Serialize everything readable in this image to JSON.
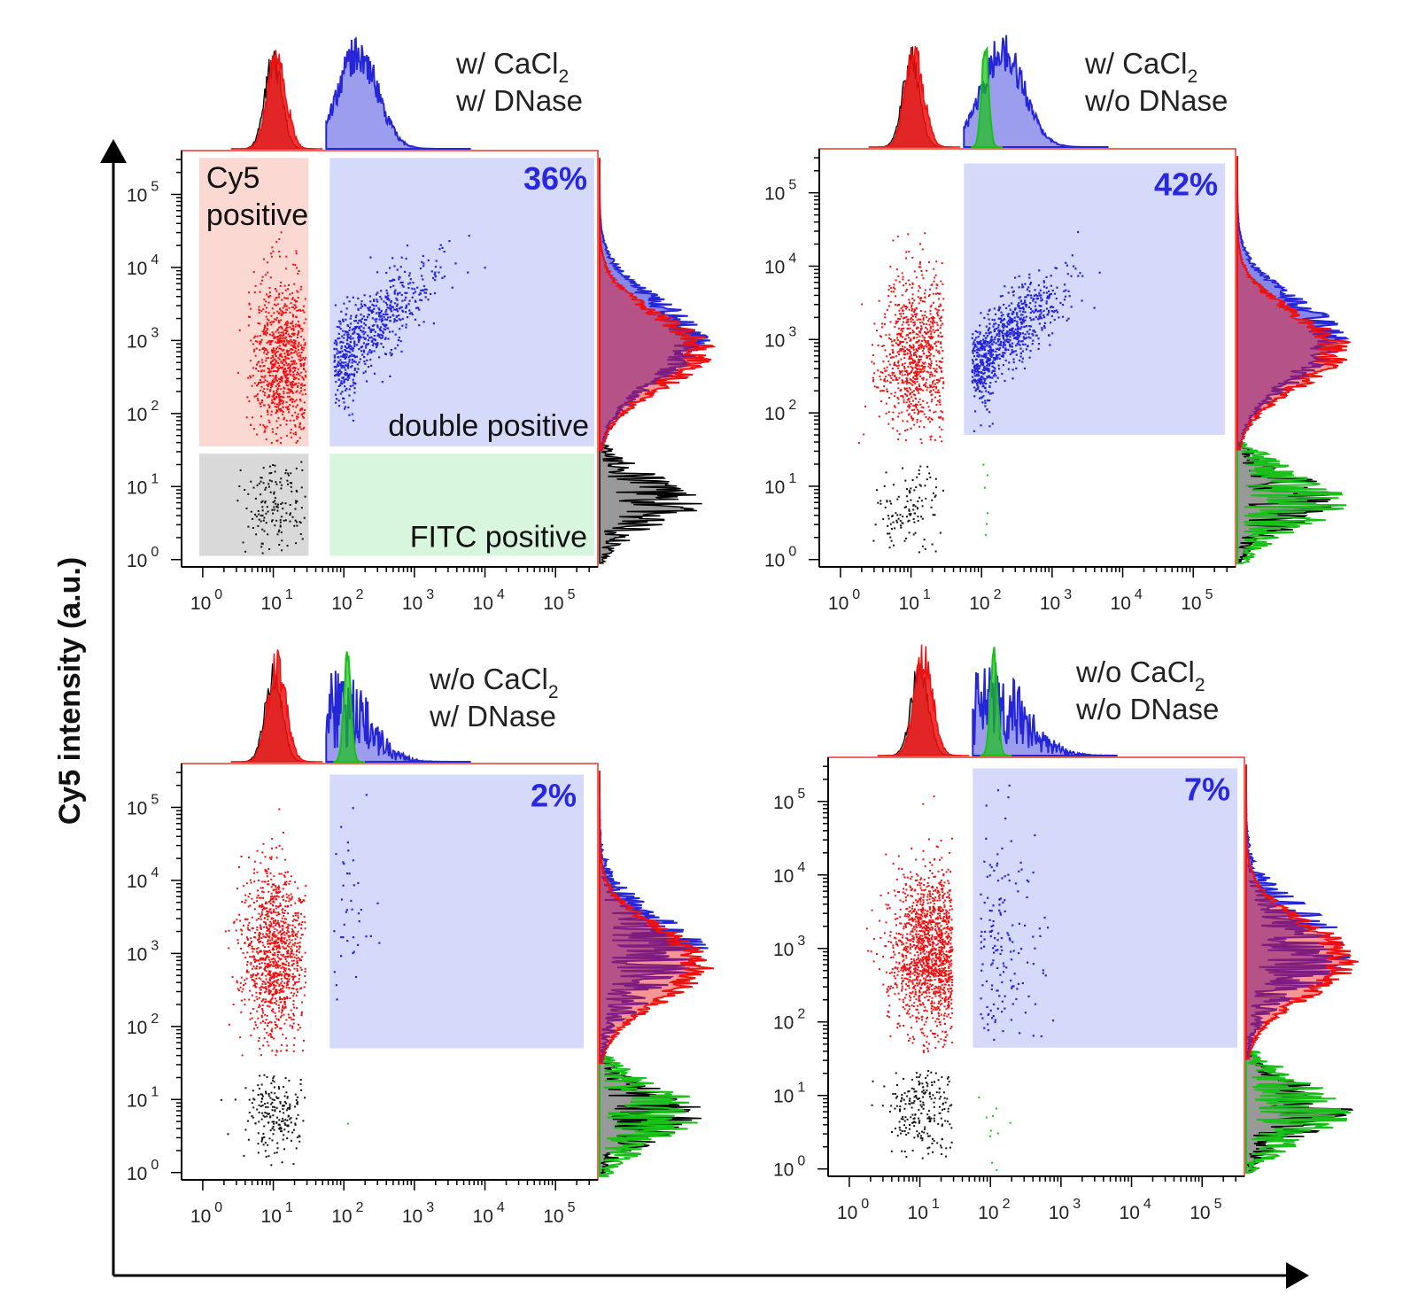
{
  "figure": {
    "y_axis_title": "Cy5 intensity (a.u.)",
    "colors": {
      "double_positive": "#2626d9",
      "cy5_positive": "#ee1111",
      "fitc_positive": "#18c018",
      "negative": "#111111",
      "gate_blue": "#d6dafa",
      "gate_red": "#fbd8d2",
      "gate_green": "#d8f5de",
      "gate_gray": "#d9d9d9"
    },
    "gate_labels": {
      "cy5_line1": "Cy5",
      "cy5_line2": "positive",
      "double": "double positive",
      "fitc": "FITC positive"
    }
  },
  "chart_data": [
    {
      "type": "scatter",
      "title_line1": "w/ CaCl",
      "title_sub": "2",
      "title_line2": "w/ DNase",
      "percent_label": "36%",
      "xaxis": {
        "scale": "log",
        "range_exp": [
          -0.3,
          5.6
        ],
        "ticks": [
          {
            "base": "10",
            "exp": "0"
          },
          {
            "base": "10",
            "exp": "1"
          },
          {
            "base": "10",
            "exp": "2"
          },
          {
            "base": "10",
            "exp": "3"
          },
          {
            "base": "10",
            "exp": "4"
          },
          {
            "base": "10",
            "exp": "5"
          }
        ]
      },
      "yaxis": {
        "scale": "log",
        "range_exp": [
          -0.1,
          5.6
        ],
        "ticks": [
          {
            "base": "10",
            "exp": "0"
          },
          {
            "base": "10",
            "exp": "1"
          },
          {
            "base": "10",
            "exp": "2"
          },
          {
            "base": "10",
            "exp": "3"
          },
          {
            "base": "10",
            "exp": "4"
          },
          {
            "base": "10",
            "exp": "5"
          }
        ]
      },
      "gate_labels_shown": true,
      "populations": {
        "double_positive_pct": 36
      },
      "clusters": [
        {
          "name": "Cy5 positive",
          "color": "#ee1111",
          "n": 900,
          "x_mean": 1.1,
          "x_sd": 0.22,
          "y_mean": 2.75,
          "y_sd": 0.55
        },
        {
          "name": "double positive",
          "color": "#2626d9",
          "n": 650,
          "x_mean": 2.35,
          "x_sd": 0.5,
          "y_mean": 3.15,
          "y_sd": 0.5,
          "slope": 0.55
        },
        {
          "name": "negative",
          "color": "#111111",
          "n": 150,
          "x_mean": 1.0,
          "x_sd": 0.22,
          "y_mean": 0.75,
          "y_sd": 0.35
        },
        {
          "name": "FITC positive",
          "color": "#18c018",
          "n": 0,
          "x_mean": 2.1,
          "x_sd": 0.1,
          "y_mean": 0.8,
          "y_sd": 0.3
        }
      ],
      "gates": {
        "double": {
          "x": [
            1.8,
            5.55
          ],
          "y": [
            1.55,
            5.5
          ]
        },
        "cy5": {
          "x": [
            -0.05,
            1.5
          ],
          "y": [
            1.55,
            5.5
          ]
        },
        "fitc": {
          "x": [
            1.8,
            5.55
          ],
          "y": [
            0.05,
            1.45
          ]
        },
        "neg": {
          "x": [
            -0.05,
            1.5
          ],
          "y": [
            0.05,
            1.45
          ]
        }
      }
    },
    {
      "type": "scatter",
      "title_line1": "w/ CaCl",
      "title_sub": "2",
      "title_line2": "w/o DNase",
      "percent_label": "42%",
      "xaxis": {
        "scale": "log",
        "range_exp": [
          -0.3,
          5.6
        ],
        "ticks": [
          {
            "base": "10",
            "exp": "0"
          },
          {
            "base": "10",
            "exp": "1"
          },
          {
            "base": "10",
            "exp": "2"
          },
          {
            "base": "10",
            "exp": "3"
          },
          {
            "base": "10",
            "exp": "4"
          },
          {
            "base": "10",
            "exp": "5"
          }
        ]
      },
      "yaxis": {
        "scale": "log",
        "range_exp": [
          -0.1,
          5.6
        ],
        "ticks": [
          {
            "base": "10",
            "exp": "0"
          },
          {
            "base": "10",
            "exp": "1"
          },
          {
            "base": "10",
            "exp": "2"
          },
          {
            "base": "10",
            "exp": "3"
          },
          {
            "base": "10",
            "exp": "4"
          },
          {
            "base": "10",
            "exp": "5"
          }
        ]
      },
      "gate_labels_shown": false,
      "populations": {
        "double_positive_pct": 42
      },
      "clusters": [
        {
          "name": "Cy5 positive",
          "color": "#ee1111",
          "n": 900,
          "x_mean": 1.05,
          "x_sd": 0.25,
          "y_mean": 2.8,
          "y_sd": 0.55
        },
        {
          "name": "double positive",
          "color": "#2626d9",
          "n": 800,
          "x_mean": 2.3,
          "x_sd": 0.45,
          "y_mean": 3.05,
          "y_sd": 0.45,
          "slope": 0.55
        },
        {
          "name": "negative",
          "color": "#111111",
          "n": 120,
          "x_mean": 1.0,
          "x_sd": 0.25,
          "y_mean": 0.7,
          "y_sd": 0.35
        },
        {
          "name": "FITC positive",
          "color": "#18c018",
          "n": 6,
          "x_mean": 2.05,
          "x_sd": 0.05,
          "y_mean": 0.8,
          "y_sd": 0.4
        }
      ],
      "gates": {
        "double": {
          "x": [
            1.75,
            5.45
          ],
          "y": [
            1.7,
            5.4
          ]
        }
      }
    },
    {
      "type": "scatter",
      "title_line1": "w/o CaCl",
      "title_sub": "2",
      "title_line2": "w/ DNase",
      "percent_label": "2%",
      "xaxis": {
        "scale": "log",
        "range_exp": [
          -0.3,
          5.6
        ],
        "ticks": [
          {
            "base": "10",
            "exp": "0"
          },
          {
            "base": "10",
            "exp": "1"
          },
          {
            "base": "10",
            "exp": "2"
          },
          {
            "base": "10",
            "exp": "3"
          },
          {
            "base": "10",
            "exp": "4"
          },
          {
            "base": "10",
            "exp": "5"
          }
        ]
      },
      "yaxis": {
        "scale": "log",
        "range_exp": [
          -0.1,
          5.6
        ],
        "ticks": [
          {
            "base": "10",
            "exp": "0"
          },
          {
            "base": "10",
            "exp": "1"
          },
          {
            "base": "10",
            "exp": "2"
          },
          {
            "base": "10",
            "exp": "3"
          },
          {
            "base": "10",
            "exp": "4"
          },
          {
            "base": "10",
            "exp": "5"
          }
        ]
      },
      "gate_labels_shown": false,
      "populations": {
        "double_positive_pct": 2
      },
      "clusters": [
        {
          "name": "Cy5 positive",
          "color": "#ee1111",
          "n": 1100,
          "x_mean": 1.0,
          "x_sd": 0.22,
          "y_mean": 3.0,
          "y_sd": 0.6
        },
        {
          "name": "double positive",
          "color": "#2626d9",
          "n": 40,
          "x_mean": 2.0,
          "x_sd": 0.25,
          "y_mean": 3.5,
          "y_sd": 0.7
        },
        {
          "name": "negative",
          "color": "#111111",
          "n": 200,
          "x_mean": 1.0,
          "x_sd": 0.22,
          "y_mean": 0.8,
          "y_sd": 0.3
        },
        {
          "name": "FITC positive",
          "color": "#18c018",
          "n": 1,
          "x_mean": 2.05,
          "x_sd": 0.02,
          "y_mean": 0.7,
          "y_sd": 0.02
        }
      ],
      "gates": {
        "double": {
          "x": [
            1.8,
            5.4
          ],
          "y": [
            1.7,
            5.45
          ]
        }
      }
    },
    {
      "type": "scatter",
      "title_line1": "w/o CaCl",
      "title_sub": "2",
      "title_line2": "w/o DNase",
      "percent_label": "7%",
      "xaxis": {
        "scale": "log",
        "range_exp": [
          -0.3,
          5.6
        ],
        "ticks": [
          {
            "base": "10",
            "exp": "0"
          },
          {
            "base": "10",
            "exp": "1"
          },
          {
            "base": "10",
            "exp": "2"
          },
          {
            "base": "10",
            "exp": "3"
          },
          {
            "base": "10",
            "exp": "4"
          },
          {
            "base": "10",
            "exp": "5"
          }
        ]
      },
      "yaxis": {
        "scale": "log",
        "range_exp": [
          -0.1,
          5.6
        ],
        "ticks": [
          {
            "base": "10",
            "exp": "0"
          },
          {
            "base": "10",
            "exp": "1"
          },
          {
            "base": "10",
            "exp": "2"
          },
          {
            "base": "10",
            "exp": "3"
          },
          {
            "base": "10",
            "exp": "4"
          },
          {
            "base": "10",
            "exp": "5"
          }
        ]
      },
      "gate_labels_shown": false,
      "populations": {
        "double_positive_pct": 7
      },
      "clusters": [
        {
          "name": "Cy5 positive",
          "color": "#ee1111",
          "n": 1400,
          "x_mean": 1.1,
          "x_sd": 0.28,
          "y_mean": 2.95,
          "y_sd": 0.55
        },
        {
          "name": "double positive",
          "color": "#2626d9",
          "n": 160,
          "x_mean": 2.15,
          "x_sd": 0.3,
          "y_mean": 3.0,
          "y_sd": 0.8
        },
        {
          "name": "negative",
          "color": "#111111",
          "n": 220,
          "x_mean": 1.05,
          "x_sd": 0.25,
          "y_mean": 0.8,
          "y_sd": 0.3
        },
        {
          "name": "FITC positive",
          "color": "#18c018",
          "n": 10,
          "x_mean": 2.05,
          "x_sd": 0.15,
          "y_mean": 0.7,
          "y_sd": 0.3
        }
      ],
      "gates": {
        "double": {
          "x": [
            1.75,
            5.5
          ],
          "y": [
            1.65,
            5.45
          ]
        }
      }
    }
  ]
}
